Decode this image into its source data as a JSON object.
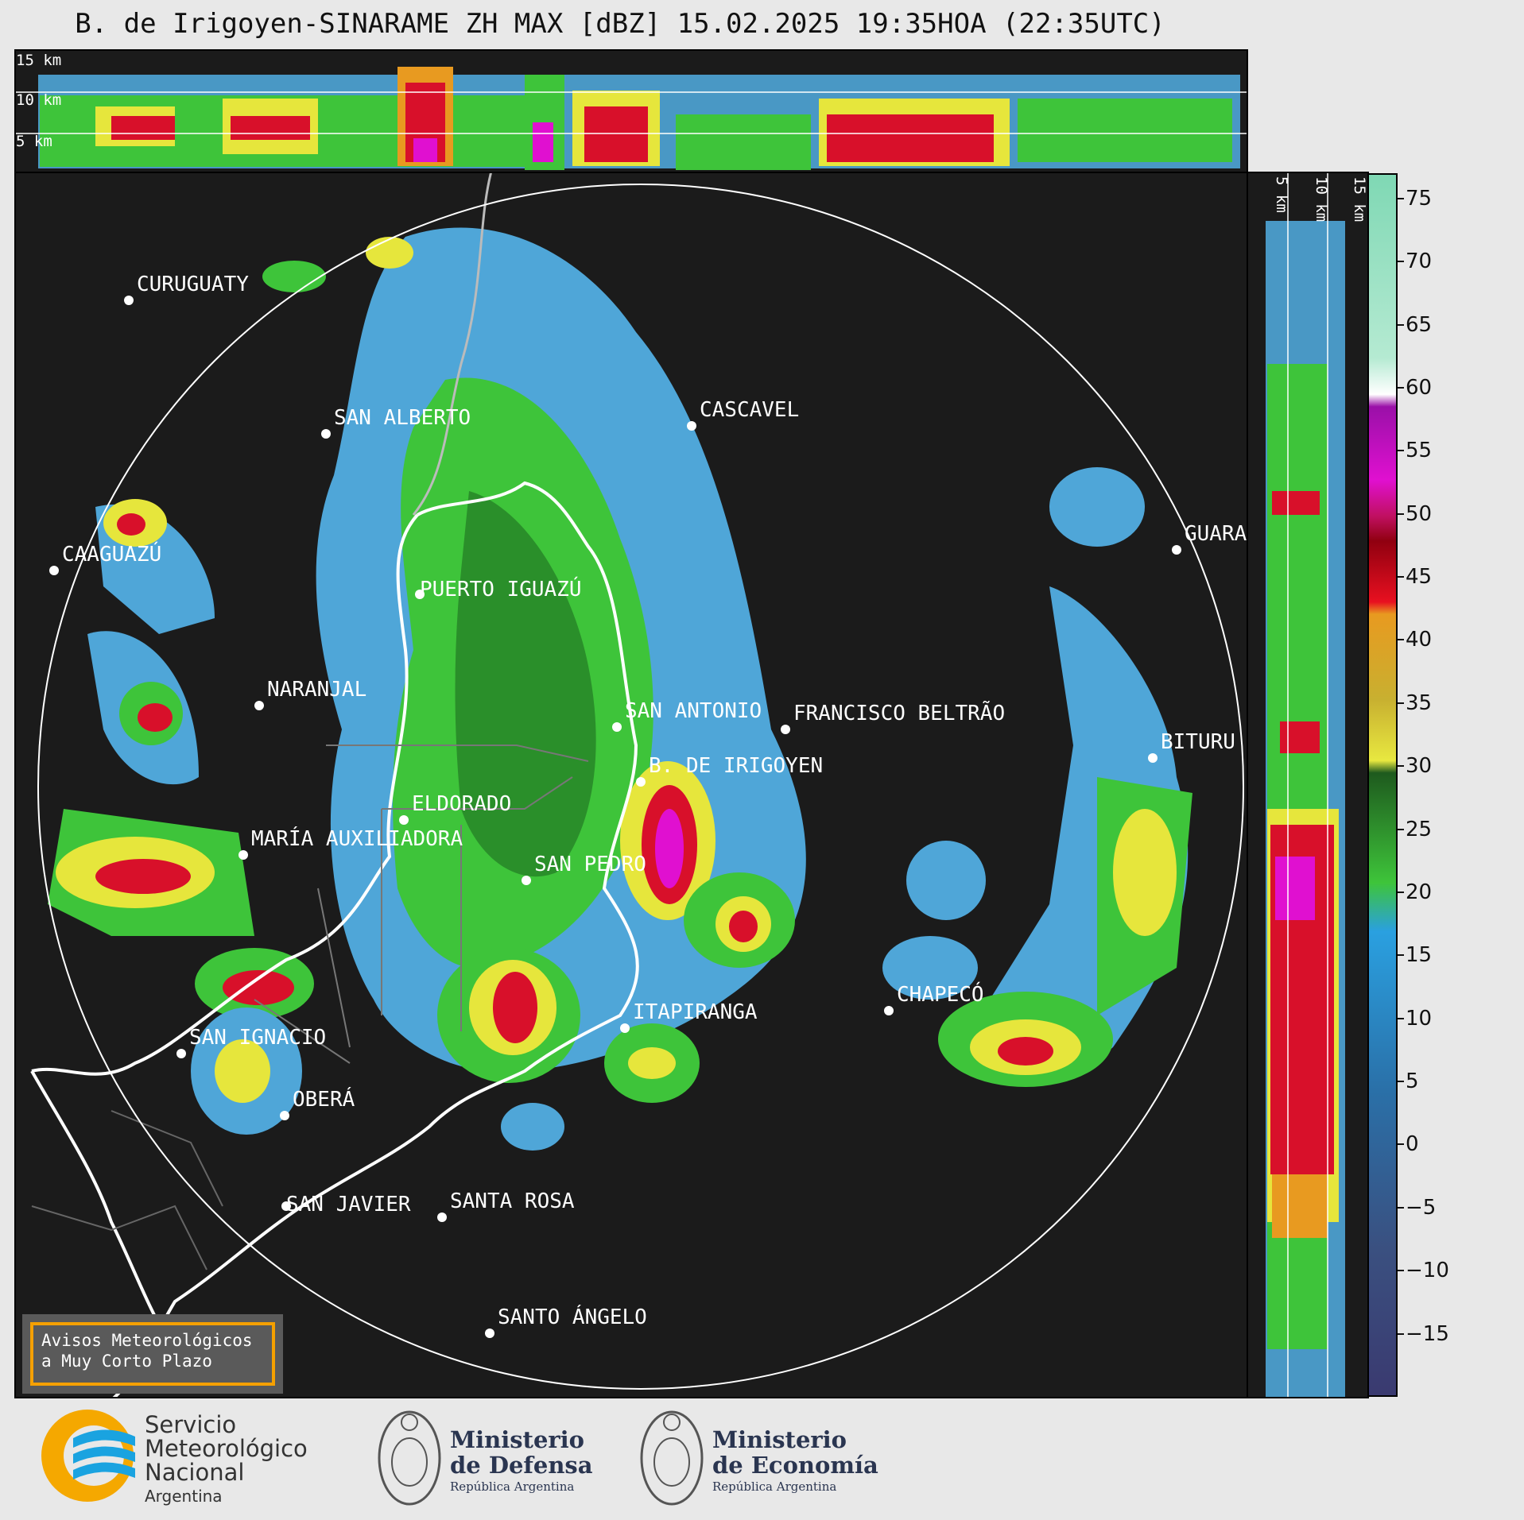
{
  "title": "B. de Irigoyen-SINARAME ZH MAX [dBZ] 15.02.2025 19:35HOA (22:35UTC)",
  "height_labels_top": [
    "15 km",
    "10 km",
    "5 km"
  ],
  "height_labels_side": [
    "5 km",
    "10 km",
    "15 km"
  ],
  "cities": [
    {
      "name": "CURUGUATY"
    },
    {
      "name": "SAN ALBERTO"
    },
    {
      "name": "CASCAVEL"
    },
    {
      "name": "CAAGUAZÚ"
    },
    {
      "name": "GUARA"
    },
    {
      "name": "PUERTO IGUAZÚ"
    },
    {
      "name": "NARANJAL"
    },
    {
      "name": "SAN ANTONIO"
    },
    {
      "name": "FRANCISCO BELTRÃO"
    },
    {
      "name": "BITURU"
    },
    {
      "name": "B. DE IRIGOYEN"
    },
    {
      "name": "ELDORADO"
    },
    {
      "name": "MARÍA AUXILIADORA"
    },
    {
      "name": "SAN PEDRO"
    },
    {
      "name": "CHAPECÓ"
    },
    {
      "name": "ITAPIRANGA"
    },
    {
      "name": "SAN IGNACIO"
    },
    {
      "name": "OBERÁ"
    },
    {
      "name": "SAN JAVIER"
    },
    {
      "name": "SANTA ROSA"
    },
    {
      "name": "SANTO ÁNGELO"
    }
  ],
  "colorbar": {
    "ticks": [
      "75",
      "70",
      "65",
      "60",
      "55",
      "50",
      "45",
      "40",
      "35",
      "30",
      "25",
      "20",
      "15",
      "10",
      "5",
      "0",
      "−5",
      "−10",
      "−15"
    ],
    "range": [
      -20,
      77
    ]
  },
  "warning": {
    "line1": "Avisos Meteorológicos",
    "line2": "a Muy Corto Plazo"
  },
  "footer": {
    "smn": {
      "line1": "Servicio",
      "line2": "Meteorológico",
      "line3": "Nacional",
      "line4": "Argentina"
    },
    "defensa": {
      "line1": "Ministerio",
      "line2": "de Defensa",
      "line3": "República Argentina"
    },
    "economia": {
      "line1": "Ministerio",
      "line2": "de Economía",
      "line3": "República Argentina"
    }
  },
  "colors": {
    "light_blue": "#4fa6d8",
    "green": "#3ec43a",
    "dark_green": "#2a8f2a",
    "yellow": "#e6e63c",
    "orange": "#e89a20",
    "red": "#d8102a",
    "magenta": "#e010d0",
    "purple": "#9a10a8",
    "white": "#ffffff"
  }
}
